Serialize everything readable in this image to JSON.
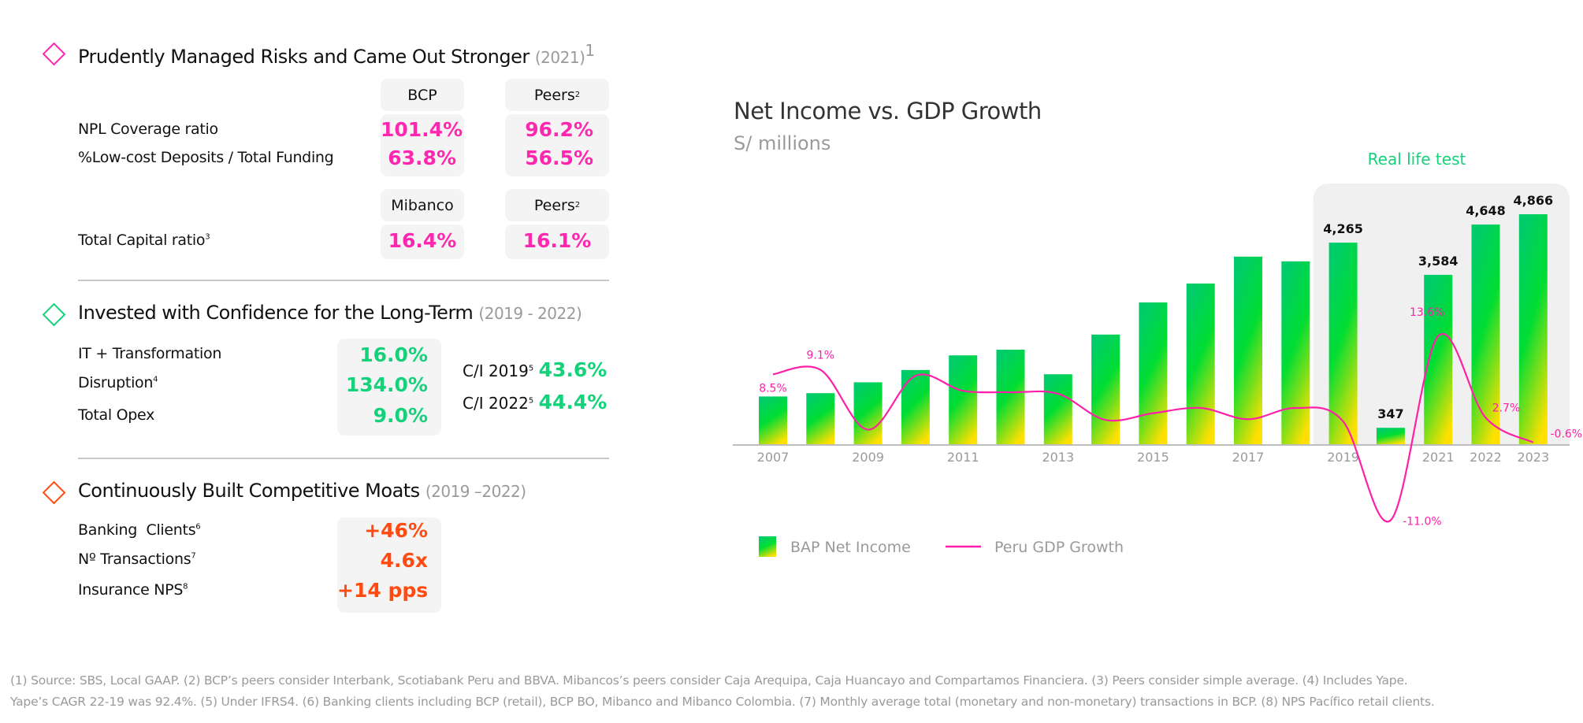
{
  "colors": {
    "pink": "#ff26b0",
    "green": "#14d27a",
    "orange": "#ff4b12",
    "bar_top": "#00cc6a",
    "bar_mid": "#00dd33",
    "bar_bottom": "#ffe000",
    "line": "#ff1fa8",
    "highlight_bg": "#f0f0f0"
  },
  "section1": {
    "title": "Prudently Managed Risks and Came Out Stronger",
    "period": "(2021)",
    "footnote_ref": "1",
    "icon": "diamond-outline-icon",
    "table1": {
      "col1": "BCP",
      "col2": "Peers",
      "col2_ref": "2",
      "rows": [
        {
          "label": "NPL Coverage ratio",
          "v1": "101.4%",
          "v2": "96.2%"
        },
        {
          "label": "%Low-cost Deposits / Total Funding",
          "v1": "63.8%",
          "v2": "56.5%"
        }
      ]
    },
    "table2": {
      "col1": "Mibanco",
      "col2": "Peers",
      "col2_ref": "2",
      "rows": [
        {
          "label": "Total Capital ratio",
          "ref": "3",
          "v1": "16.4%",
          "v2": "16.1%"
        }
      ]
    }
  },
  "section2": {
    "title": "Invested with Confidence for the Long-Term",
    "period": "(2019 - 2022)",
    "icon": "diamond-outline-icon",
    "rows": [
      {
        "label": "IT + Transformation",
        "ref": "",
        "value": "16.0%"
      },
      {
        "label": "Disruption",
        "ref": "4",
        "value": "134.0%"
      },
      {
        "label": "Total Opex",
        "ref": "",
        "value": "9.0%"
      }
    ],
    "ci": [
      {
        "label": "C/I 2019",
        "ref": "5",
        "value": "43.6%"
      },
      {
        "label": "C/I 2022",
        "ref": "5",
        "value": "44.4%"
      }
    ]
  },
  "section3": {
    "title": "Continuously Built Competitive Moats",
    "period": "(2019 –2022)",
    "icon": "diamond-outline-icon",
    "rows": [
      {
        "label": "Banking  Clients",
        "ref": "6",
        "value": "+46%"
      },
      {
        "label": "Nº Transactions",
        "ref": "7",
        "value": "4.6x"
      },
      {
        "label": "Insurance NPS",
        "ref": "8",
        "value": "+14 pps"
      }
    ]
  },
  "chart_data": {
    "type": "bar+line",
    "title": "Net Income vs. GDP Growth",
    "subtitle": "S/ millions",
    "annotation": "Real life test",
    "highlight_range": [
      "2019",
      "2023"
    ],
    "categories": [
      "2007",
      "2008",
      "2009",
      "2010",
      "2011",
      "2012",
      "2013",
      "2014",
      "2015",
      "2016",
      "2017",
      "2018",
      "2019",
      "2020",
      "2021",
      "2022",
      "2023"
    ],
    "tick_labels": [
      "2007",
      "",
      "2009",
      "",
      "2011",
      "",
      "2013",
      "",
      "2015",
      "",
      "2017",
      "",
      "2019",
      "",
      "2021",
      "2022",
      "2023"
    ],
    "series": [
      {
        "name": "BAP Net Income",
        "type": "bar",
        "values": [
          1010,
          1080,
          1310,
          1570,
          1880,
          2000,
          1480,
          2320,
          3000,
          3400,
          3970,
          3870,
          4265,
          347,
          3584,
          4648,
          4866
        ],
        "data_labels": [
          "",
          "",
          "",
          "",
          "",
          "",
          "",
          "",
          "",
          "",
          "",
          "",
          "4,265",
          "347",
          "3,584",
          "4,648",
          "4,866"
        ]
      },
      {
        "name": "Peru GDP Growth",
        "type": "line",
        "unit": "%",
        "values": [
          8.5,
          9.1,
          1.1,
          8.3,
          6.3,
          6.1,
          5.9,
          2.4,
          3.3,
          4.0,
          2.5,
          4.0,
          2.2,
          -11.0,
          13.6,
          2.7,
          -0.6
        ],
        "data_labels": [
          "8.5%",
          "9.1%",
          "",
          "",
          "",
          "",
          "",
          "",
          "",
          "",
          "",
          "",
          "",
          "-11.0%",
          "13.6%",
          "2.7%",
          "-0.6%"
        ]
      }
    ],
    "legend": "bottom-left",
    "grid": false
  },
  "footnotes": [
    "(1) Source: SBS, Local GAAP. (2) BCP’s peers consider Interbank, Scotiabank Peru and BBVA. Mibancos’s peers consider Caja Arequipa, Caja Huancayo and Compartamos Financiera. (3) Peers consider simple average. (4) Includes Yape.",
    "Yape’s CAGR 22-19 was 92.4%. (5) Under IFRS4. (6) Banking clients including BCP (retail), BCP BO, Mibanco and Mibanco Colombia. (7) Monthly average total (monetary and non-monetary) transactions in BCP. (8) NPS Pacífico retail clients."
  ]
}
